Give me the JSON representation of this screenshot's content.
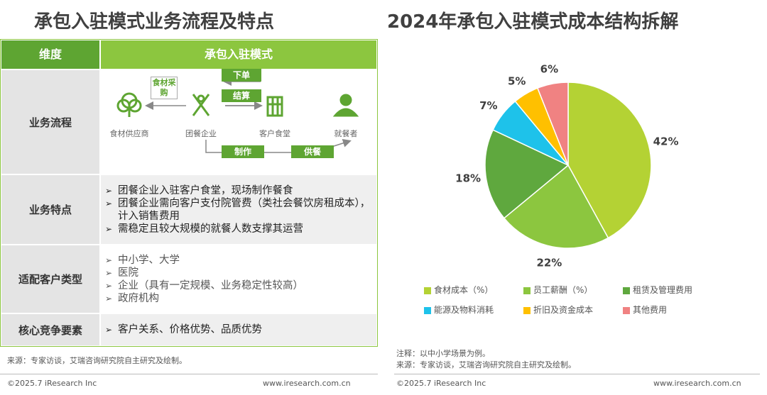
{
  "left_title": "承包入驻模式业务流程及特点",
  "table": {
    "header": [
      "维度",
      "承包入驻模式"
    ],
    "rows": [
      {
        "label": "业务流程"
      },
      {
        "label": "业务特点",
        "items": [
          "团餐企业入驻客户食堂，现场制作餐食",
          "团餐企业需向客户支付院管费（类社会餐饮房租成本），计入销售费用",
          "需稳定且较大规模的就餐人数支撑其运营"
        ]
      },
      {
        "label": "适配客户类型",
        "items": [
          "中小学、大学",
          "医院",
          "企业（具有一定规模、业务稳定性较高）",
          "政府机构"
        ]
      },
      {
        "label": "核心竞争要素",
        "items": [
          "客户关系、价格优势、品质优势"
        ]
      }
    ]
  },
  "flow": {
    "nodes": [
      "食材供应商",
      "团餐企业",
      "客户食堂",
      "就餐者"
    ],
    "edges": [
      "食材采购",
      "下单",
      "结算",
      "制作",
      "供餐"
    ]
  },
  "chart_data": {
    "type": "pie",
    "title": "2024年承包入驻模式成本结构拆解",
    "categories": [
      "食材成本（%）",
      "员工薪酬（%）",
      "租赁及管理费用",
      "能源及物料消耗",
      "折旧及资金成本",
      "其他费用"
    ],
    "values": [
      42,
      22,
      18,
      7,
      5,
      6
    ],
    "value_labels": [
      "42%",
      "22%",
      "18%",
      "7%",
      "5%",
      "6%"
    ],
    "colors": [
      "#b4d234",
      "#8cc63f",
      "#5fa83e",
      "#1ec2ea",
      "#ffc000",
      "#f08282"
    ]
  },
  "notes": {
    "left_source": "来源：专家访谈，艾瑞咨询研究院自主研究及绘制。",
    "right_note": "注释：以中小学场景为例。",
    "right_source": "来源：专家访谈，艾瑞咨询研究院自主研究及绘制。"
  },
  "footer": {
    "copyright_left": "©2025.7 iResearch Inc",
    "url_left": "www.iresearch.com.cn",
    "copyright_right": "©2025.7 iResearch Inc",
    "url_right": "www.iresearch.com.cn"
  }
}
